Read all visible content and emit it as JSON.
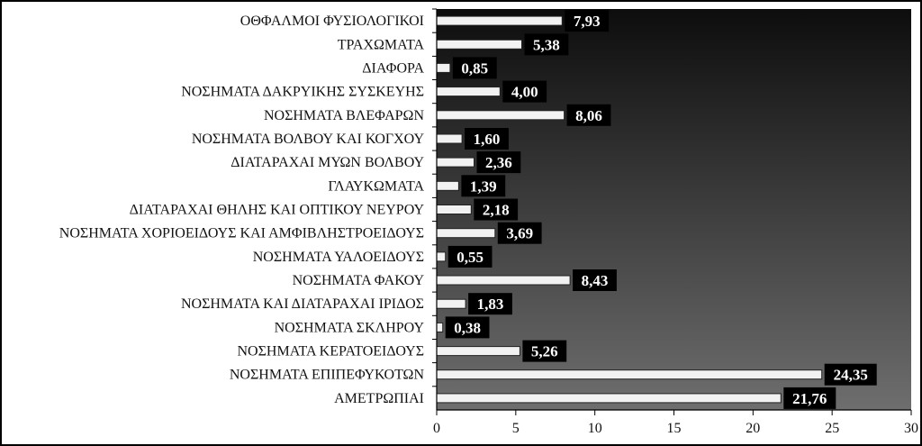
{
  "chart_data": {
    "type": "bar",
    "orientation": "horizontal",
    "categories": [
      "ΟΘΦΑΛΜΟΙ ΦΥΣΙΟΛΟΓΙΚΟΙ",
      "ΤΡΑΧΩΜΑΤΑ",
      "ΔΙΑΦΟΡΑ",
      "ΝΟΣΗΜΑΤΑ ΔΑΚΡΥΙΚΗΣ ΣΥΣΚΕΥΗΣ",
      "ΝΟΣΗΜΑΤΑ ΒΛΕΦΑΡΩΝ",
      "ΝΟΣΗΜΑΤΑ ΒΟΛΒΟΥ ΚΑΙ ΚΟΓΧΟΥ",
      "ΔΙΑΤΑΡΑΧΑΙ ΜΥΩΝ ΒΟΛΒΟΥ",
      "ΓΛΑΥΚΩΜΑΤΑ",
      "ΔΙΑΤΑΡΑΧΑΙ ΘΗΛΗΣ ΚΑΙ ΟΠΤΙΚΟΥ ΝΕΥΡΟΥ",
      "ΝΟΣΗΜΑΤΑ ΧΟΡΙΟΕΙΔΟΥΣ ΚΑΙ ΑΜΦΙΒΛΗΣΤΡΟΕΙΔΟΥΣ",
      "ΝΟΣΗΜΑΤΑ ΥΑΛΟΕΙΔΟΥΣ",
      "ΝΟΣΗΜΑΤΑ ΦΑΚΟΥ",
      "ΝΟΣΗΜΑΤΑ ΚΑΙ ΔΙΑΤΑΡΑΧΑΙ ΙΡΙΔΟΣ",
      "ΝΟΣΗΜΑΤΑ ΣΚΛΗΡΟΥ",
      "ΝΟΣΗΜΑΤΑ ΚΕΡΑΤΟΕΙΔΟΥΣ",
      "ΝΟΣΗΜΑΤΑ ΕΠΙΠΕΦΥΚΟΤΩΝ",
      "ΑΜΕΤΡΩΠΙΑΙ"
    ],
    "values": [
      7.93,
      5.38,
      0.85,
      4.0,
      8.06,
      1.6,
      2.36,
      1.39,
      2.18,
      3.69,
      0.55,
      8.43,
      1.83,
      0.38,
      5.26,
      24.35,
      21.76
    ],
    "value_labels": [
      "7,93",
      "5,38",
      "0,85",
      "4,00",
      "8,06",
      "1,60",
      "2,36",
      "1,39",
      "2,18",
      "3,69",
      "0,55",
      "8,43",
      "1,83",
      "0,38",
      "5,26",
      "24,35",
      "21,76"
    ],
    "xlim": [
      0,
      30
    ],
    "x_ticks": [
      0,
      5,
      10,
      15,
      20,
      25,
      30
    ],
    "x_tick_labels": [
      "0",
      "5",
      "10",
      "15",
      "20",
      "25",
      "30"
    ],
    "title": "",
    "xlabel": "",
    "ylabel": "",
    "grid": false,
    "legend": "none",
    "colors": {
      "bar_fill": "#f2f2f2",
      "bar_stroke": "#222222",
      "label_box": "#000000",
      "label_text": "#ffffff",
      "plot_gradient_top": "#0d0d0d",
      "plot_gradient_bottom": "#6e6e6e"
    }
  }
}
